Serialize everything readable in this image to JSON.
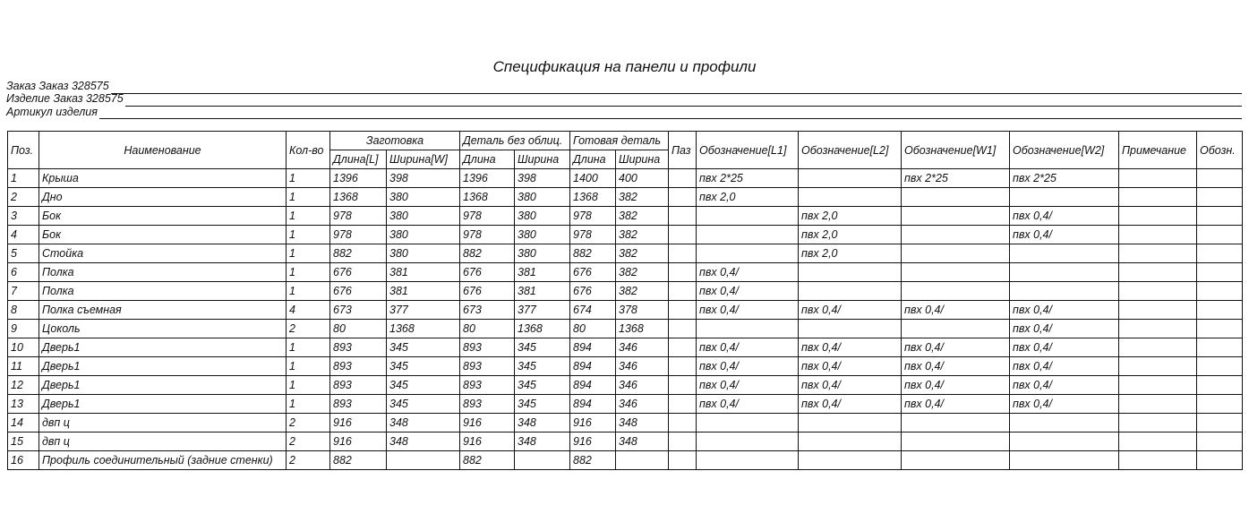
{
  "title": "Спецификация на панели и профили",
  "meta": {
    "order": "Заказ Заказ 328575",
    "product": "Изделие Заказ 328575",
    "article": "Артикул изделия"
  },
  "headers": {
    "pos": "Поз.",
    "name": "Наименование",
    "qty": "Кол-во",
    "blank": "Заготовка",
    "detail": "Деталь без облиц.",
    "finished": "Готовая деталь",
    "groove": "Паз",
    "l1": "Обозначение[L1]",
    "l2": "Обозначение[L2]",
    "w1": "Обозначение[W1]",
    "w2": "Обозначение[W2]",
    "note": "Примечание",
    "desig": "Обозн.",
    "blank_len": "Длина[L]",
    "blank_wid": "Ширина[W]",
    "len": "Длина",
    "wid": "Ширина"
  },
  "rows": [
    [
      "1",
      "Крыша",
      "1",
      "1396",
      "398",
      "1396",
      "398",
      "1400",
      "400",
      "",
      "пвх 2*25",
      "",
      "пвх 2*25",
      "пвх 2*25",
      "",
      ""
    ],
    [
      "2",
      "Дно",
      "1",
      "1368",
      "380",
      "1368",
      "380",
      "1368",
      "382",
      "",
      "пвх 2,0",
      "",
      "",
      "",
      "",
      ""
    ],
    [
      "3",
      "Бок",
      "1",
      "978",
      "380",
      "978",
      "380",
      "978",
      "382",
      "",
      "",
      "пвх 2,0",
      "",
      "пвх 0,4/",
      "",
      ""
    ],
    [
      "4",
      "Бок",
      "1",
      "978",
      "380",
      "978",
      "380",
      "978",
      "382",
      "",
      "",
      "пвх 2,0",
      "",
      "пвх 0,4/",
      "",
      ""
    ],
    [
      "5",
      "Стойка",
      "1",
      "882",
      "380",
      "882",
      "380",
      "882",
      "382",
      "",
      "",
      "пвх 2,0",
      "",
      "",
      "",
      ""
    ],
    [
      "6",
      "Полка",
      "1",
      "676",
      "381",
      "676",
      "381",
      "676",
      "382",
      "",
      "пвх 0,4/",
      "",
      "",
      "",
      "",
      ""
    ],
    [
      "7",
      "Полка",
      "1",
      "676",
      "381",
      "676",
      "381",
      "676",
      "382",
      "",
      "пвх 0,4/",
      "",
      "",
      "",
      "",
      ""
    ],
    [
      "8",
      "Полка съемная",
      "4",
      "673",
      "377",
      "673",
      "377",
      "674",
      "378",
      "",
      "пвх 0,4/",
      "пвх 0,4/",
      "пвх 0,4/",
      "пвх 0,4/",
      "",
      ""
    ],
    [
      "9",
      "Цоколь",
      "2",
      "80",
      "1368",
      "80",
      "1368",
      "80",
      "1368",
      "",
      "",
      "",
      "",
      "пвх 0,4/",
      "",
      ""
    ],
    [
      "10",
      "Дверь1",
      "1",
      "893",
      "345",
      "893",
      "345",
      "894",
      "346",
      "",
      "пвх 0,4/",
      "пвх 0,4/",
      "пвх 0,4/",
      "пвх 0,4/",
      "",
      ""
    ],
    [
      "11",
      "Дверь1",
      "1",
      "893",
      "345",
      "893",
      "345",
      "894",
      "346",
      "",
      "пвх 0,4/",
      "пвх 0,4/",
      "пвх 0,4/",
      "пвх 0,4/",
      "",
      ""
    ],
    [
      "12",
      "Дверь1",
      "1",
      "893",
      "345",
      "893",
      "345",
      "894",
      "346",
      "",
      "пвх 0,4/",
      "пвх 0,4/",
      "пвх 0,4/",
      "пвх 0,4/",
      "",
      ""
    ],
    [
      "13",
      "Дверь1",
      "1",
      "893",
      "345",
      "893",
      "345",
      "894",
      "346",
      "",
      "пвх 0,4/",
      "пвх 0,4/",
      "пвх 0,4/",
      "пвх 0,4/",
      "",
      ""
    ],
    [
      "14",
      "двп ц",
      "2",
      "916",
      "348",
      "916",
      "348",
      "916",
      "348",
      "",
      "",
      "",
      "",
      "",
      "",
      ""
    ],
    [
      "15",
      "двп ц",
      "2",
      "916",
      "348",
      "916",
      "348",
      "916",
      "348",
      "",
      "",
      "",
      "",
      "",
      "",
      ""
    ],
    [
      "16",
      "Профиль соединительный (задние стенки)",
      "2",
      "882",
      "",
      "882",
      "",
      "882",
      "",
      "",
      "",
      "",
      "",
      "",
      "",
      ""
    ]
  ]
}
